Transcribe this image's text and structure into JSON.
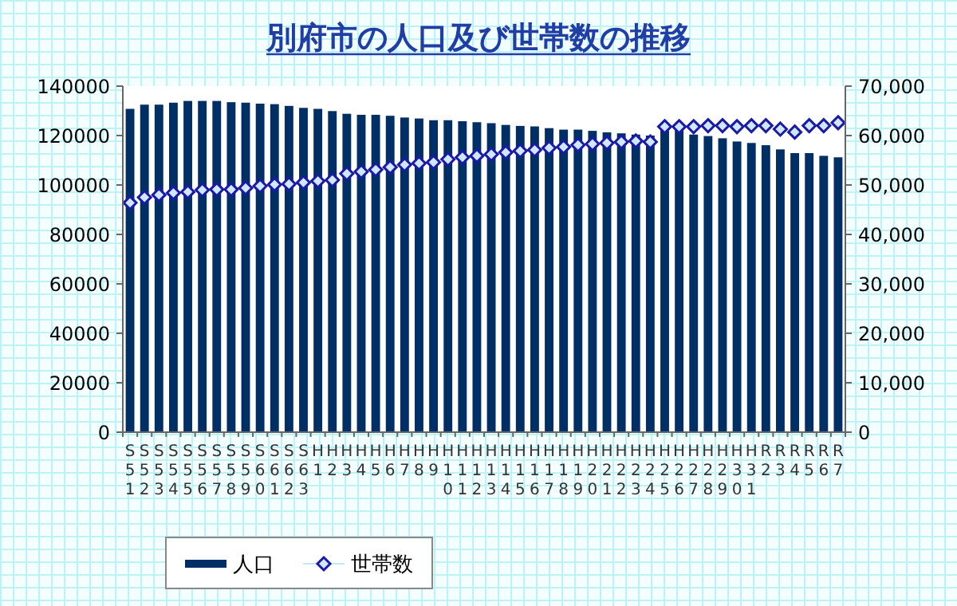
{
  "chart_data": {
    "type": "bar",
    "title": "別府市の人口及び世帯数の推移",
    "categories": [
      "S51",
      "S52",
      "S53",
      "S54",
      "S55",
      "S56",
      "S57",
      "S58",
      "S59",
      "S60",
      "S61",
      "S62",
      "S63",
      "H1",
      "H2",
      "H3",
      "H4",
      "H5",
      "H6",
      "H7",
      "H8",
      "H9",
      "H10",
      "H11",
      "H12",
      "H13",
      "H14",
      "H15",
      "H16",
      "H17",
      "H18",
      "H19",
      "H20",
      "H21",
      "H22",
      "H23",
      "H24",
      "H25",
      "H26",
      "H27",
      "H28",
      "H29",
      "H30",
      "H31",
      "R2",
      "R3",
      "R4",
      "R5",
      "R6",
      "R7"
    ],
    "series": [
      {
        "name": "人口",
        "color": "#002f66",
        "values": [
          130800,
          132500,
          132500,
          133300,
          134000,
          134000,
          134000,
          133500,
          133300,
          132900,
          132700,
          132000,
          131200,
          130800,
          129900,
          128800,
          128400,
          128400,
          128000,
          127300,
          126900,
          126200,
          126200,
          125800,
          125400,
          125000,
          124300,
          123900,
          123700,
          123000,
          122400,
          122400,
          121900,
          121300,
          120900,
          120400,
          120000,
          123300,
          122600,
          120400,
          119800,
          118900,
          117600,
          117000,
          116100,
          114400,
          112900,
          112900,
          111800,
          111200
        ]
      },
      {
        "name": "世帯数",
        "type": "scatter",
        "axis": "y2",
        "color": "#1a1aa6",
        "marker": "diamond",
        "values": [
          46400,
          47500,
          48000,
          48400,
          48600,
          49000,
          49100,
          49100,
          49400,
          49800,
          50100,
          50200,
          50500,
          50800,
          51000,
          52300,
          52700,
          53100,
          53600,
          54100,
          54400,
          54600,
          55200,
          55600,
          55900,
          56200,
          56600,
          56900,
          57100,
          57500,
          57700,
          58100,
          58300,
          58500,
          58700,
          58900,
          58700,
          61800,
          61800,
          61800,
          62000,
          62000,
          61800,
          62000,
          62000,
          61300,
          60700,
          62000,
          62000,
          62600
        ]
      }
    ],
    "ylim": [
      0,
      140000
    ],
    "yticks": [
      0,
      20000,
      40000,
      60000,
      80000,
      100000,
      120000,
      140000
    ],
    "y2lim": [
      0,
      70000
    ],
    "y2ticks": [
      0,
      {
        "value": 10000,
        "label": "10,000"
      },
      {
        "value": 20000,
        "label": "20,000"
      },
      {
        "value": 30000,
        "label": "30,000"
      },
      {
        "value": 40000,
        "label": "40,000"
      },
      {
        "value": 50000,
        "label": "50,000"
      },
      {
        "value": 60000,
        "label": "60,000"
      },
      {
        "value": 70000,
        "label": "70,000"
      }
    ],
    "legend": "bottom left",
    "grid": false
  }
}
